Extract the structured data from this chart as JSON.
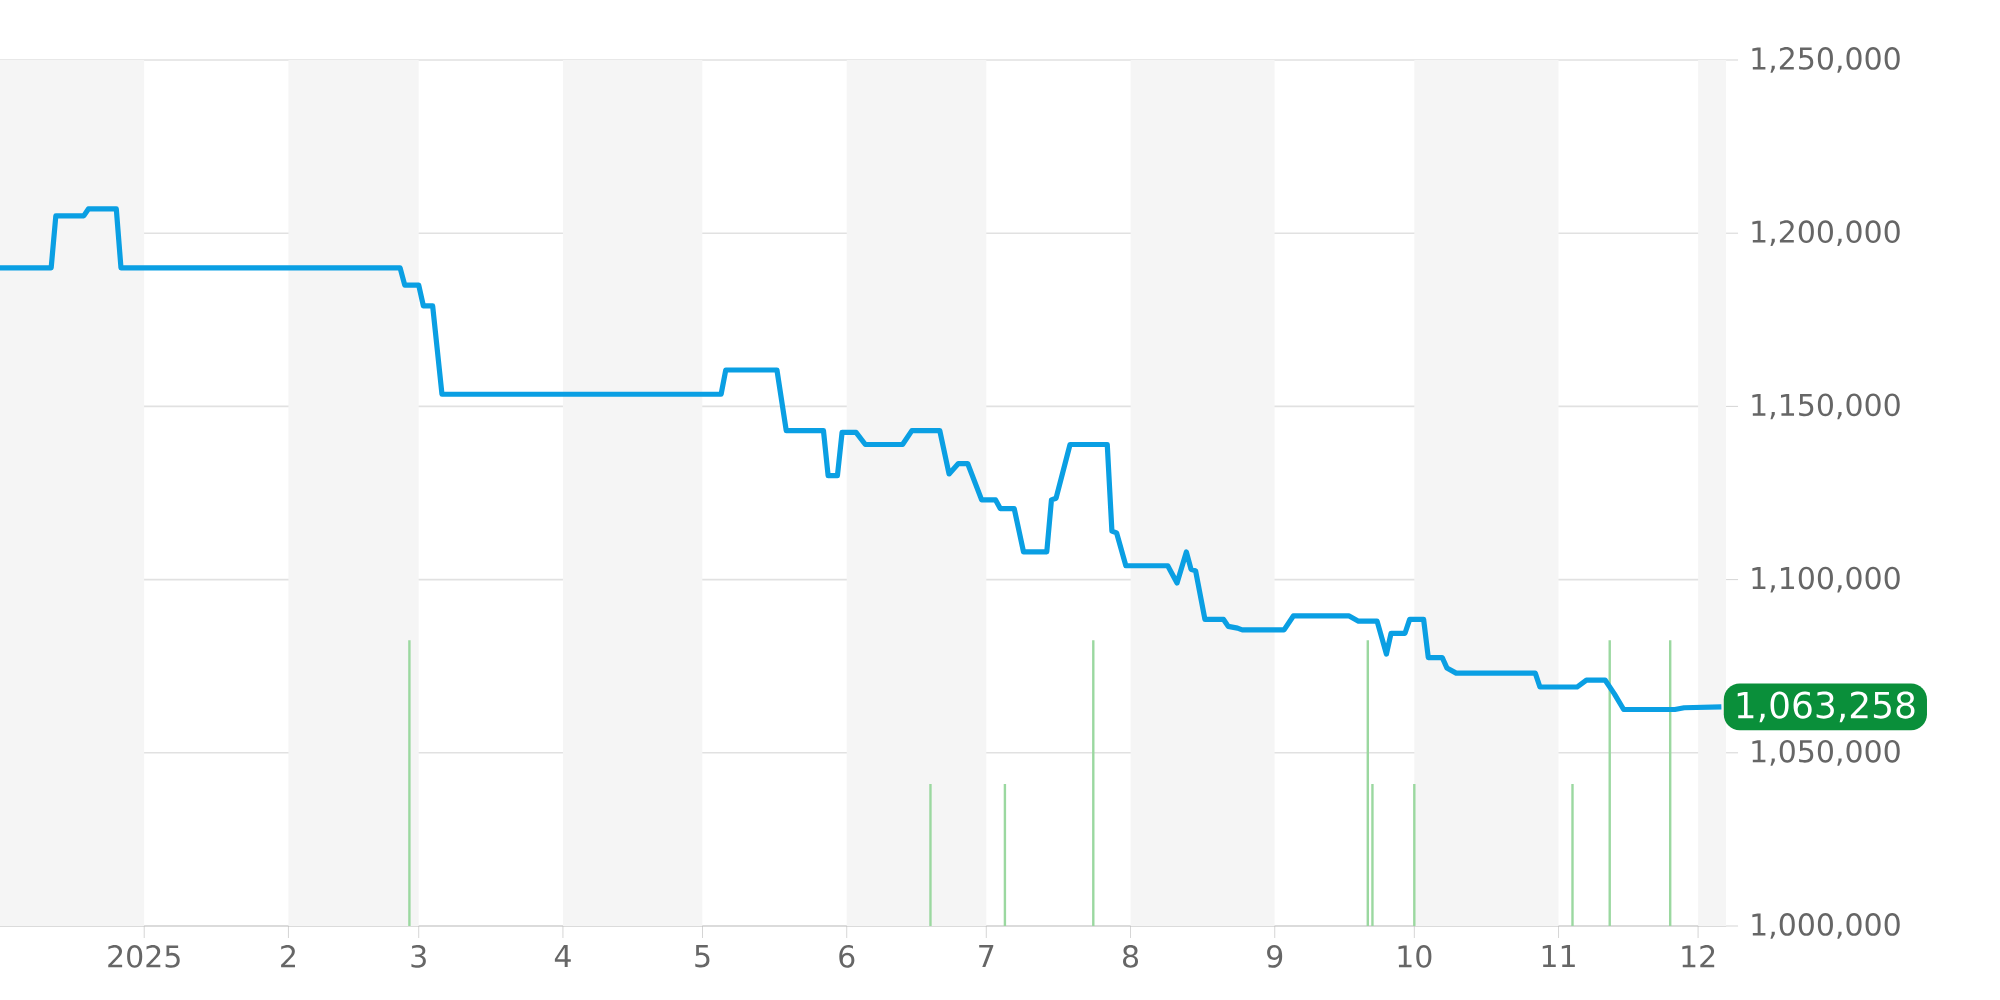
{
  "chart_data": {
    "type": "line",
    "xlim": [
      "2024-12-01",
      "2025-12-07"
    ],
    "ylim": [
      1000000,
      1250000
    ],
    "xticks": [
      {
        "value": "2025-01-01",
        "label": "2025"
      },
      {
        "value": "2025-02-01",
        "label": "2"
      },
      {
        "value": "2025-03-01",
        "label": "3"
      },
      {
        "value": "2025-04-01",
        "label": "4"
      },
      {
        "value": "2025-05-01",
        "label": "5"
      },
      {
        "value": "2025-06-01",
        "label": "6"
      },
      {
        "value": "2025-07-01",
        "label": "7"
      },
      {
        "value": "2025-08-01",
        "label": "8"
      },
      {
        "value": "2025-09-01",
        "label": "9"
      },
      {
        "value": "2025-10-01",
        "label": "10"
      },
      {
        "value": "2025-11-01",
        "label": "11"
      },
      {
        "value": "2025-12-01",
        "label": "12"
      }
    ],
    "yticks": [
      {
        "value": 1000000,
        "label": "1,000,000"
      },
      {
        "value": 1050000,
        "label": "1,050,000"
      },
      {
        "value": 1100000,
        "label": "1,100,000"
      },
      {
        "value": 1150000,
        "label": "1,150,000"
      },
      {
        "value": 1200000,
        "label": "1,200,000"
      },
      {
        "value": 1250000,
        "label": "1,250,000"
      }
    ],
    "grid": "y",
    "bands": [
      {
        "axis": "x",
        "from": "2024-12-01",
        "to": "2025-01-01",
        "color": "#f5f5f5"
      },
      {
        "axis": "x",
        "from": "2025-02-01",
        "to": "2025-03-01",
        "color": "#f5f5f5"
      },
      {
        "axis": "x",
        "from": "2025-04-01",
        "to": "2025-05-01",
        "color": "#f5f5f5"
      },
      {
        "axis": "x",
        "from": "2025-06-01",
        "to": "2025-07-01",
        "color": "#f5f5f5"
      },
      {
        "axis": "x",
        "from": "2025-08-01",
        "to": "2025-09-01",
        "color": "#f5f5f5"
      },
      {
        "axis": "x",
        "from": "2025-10-01",
        "to": "2025-11-01",
        "color": "#f5f5f5"
      },
      {
        "axis": "x",
        "from": "2025-12-01",
        "to": "2025-12-07",
        "color": "#f5f5f5"
      }
    ],
    "annotations": [
      {
        "text": "1,063,258",
        "x": "2025-12-06",
        "y": 1063258
      }
    ],
    "series": [
      {
        "type": "bar",
        "color": "#9bd8a0",
        "x": [
          "2025-02-27",
          "2025-06-19",
          "2025-07-05",
          "2025-07-24",
          "2025-09-21",
          "2025-09-22",
          "2025-10-01",
          "2025-11-04",
          "2025-11-12",
          "2025-11-25"
        ],
        "values": [
          1082500,
          1041000,
          1041000,
          1082500,
          1082500,
          1041000,
          1041000,
          1041000,
          1082500,
          1082500
        ]
      },
      {
        "color": "#0a9fe3",
        "x": [
          "2024-12-01",
          "2024-12-12",
          "2024-12-13",
          "2024-12-19",
          "2024-12-20",
          "2024-12-26",
          "2024-12-27",
          "2025-02-25",
          "2025-02-26",
          "2025-03-01",
          "2025-03-02",
          "2025-03-04",
          "2025-03-06",
          "2025-05-05",
          "2025-05-06",
          "2025-05-17",
          "2025-05-19",
          "2025-05-27",
          "2025-05-28",
          "2025-05-30",
          "2025-05-31",
          "2025-06-03",
          "2025-06-05",
          "2025-06-13",
          "2025-06-15",
          "2025-06-21",
          "2025-06-23",
          "2025-06-25",
          "2025-06-27",
          "2025-06-30",
          "2025-07-03",
          "2025-07-04",
          "2025-07-07",
          "2025-07-09",
          "2025-07-14",
          "2025-07-15",
          "2025-07-16",
          "2025-07-19",
          "2025-07-27",
          "2025-07-28",
          "2025-07-29",
          "2025-07-31",
          "2025-08-09",
          "2025-08-11",
          "2025-08-13",
          "2025-08-14",
          "2025-08-15",
          "2025-08-17",
          "2025-08-21",
          "2025-08-22",
          "2025-08-24",
          "2025-08-25",
          "2025-09-03",
          "2025-09-05",
          "2025-09-17",
          "2025-09-19",
          "2025-09-23",
          "2025-09-25",
          "2025-09-26",
          "2025-09-29",
          "2025-09-30",
          "2025-10-03",
          "2025-10-04",
          "2025-10-07",
          "2025-10-08",
          "2025-10-10",
          "2025-10-27",
          "2025-10-28",
          "2025-11-05",
          "2025-11-07",
          "2025-11-11",
          "2025-11-13",
          "2025-11-15",
          "2025-11-26",
          "2025-11-28",
          "2025-12-06"
        ],
        "values": [
          1190000,
          1190000,
          1205000,
          1205000,
          1207000,
          1207000,
          1190000,
          1190000,
          1185000,
          1185000,
          1179000,
          1179000,
          1153500,
          1153500,
          1160500,
          1160500,
          1143000,
          1143000,
          1130000,
          1130000,
          1142500,
          1142500,
          1139000,
          1139000,
          1143000,
          1143000,
          1130500,
          1133500,
          1133500,
          1123000,
          1123000,
          1120500,
          1120500,
          1108000,
          1108000,
          1123000,
          1123500,
          1139000,
          1139000,
          1114000,
          1113500,
          1104000,
          1104000,
          1099000,
          1108000,
          1103000,
          1102500,
          1088500,
          1088500,
          1086500,
          1086000,
          1085500,
          1085500,
          1089500,
          1089500,
          1088000,
          1088000,
          1078500,
          1084500,
          1084500,
          1088500,
          1088500,
          1077500,
          1077500,
          1074500,
          1073000,
          1073000,
          1069000,
          1069000,
          1071000,
          1071000,
          1067000,
          1062500,
          1062500,
          1063000,
          1063258
        ]
      }
    ]
  }
}
